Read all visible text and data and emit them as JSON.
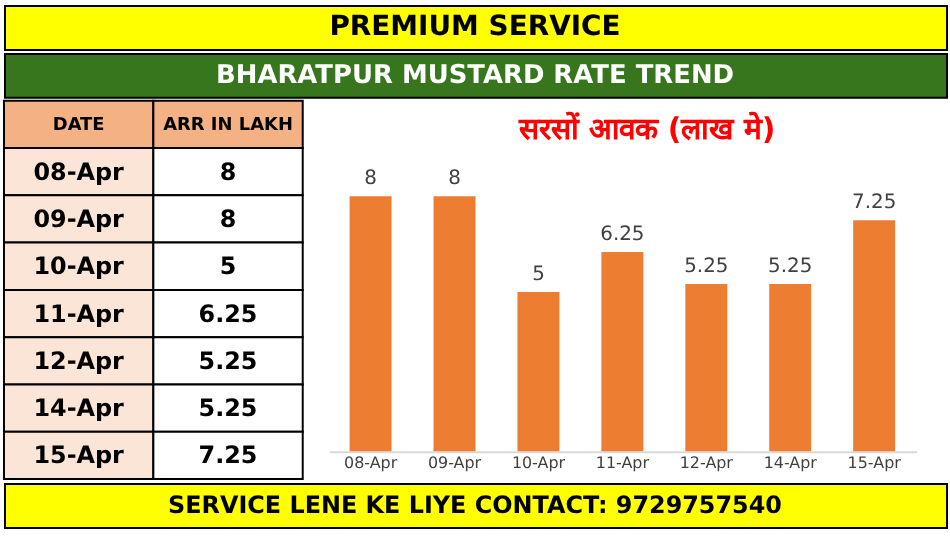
{
  "chart_data": [
    {
      "type": "other",
      "categories": [
        "08-Apr",
        "09-Apr",
        "10-Apr",
        "11-Apr",
        "12-Apr",
        "14-Apr",
        "15-Apr"
      ],
      "values": [
        8,
        8,
        5,
        6.25,
        5.25,
        5.25,
        7.25
      ],
      "data_labels": true,
      "annotations": [
        "DATE",
        "ARR IN LAKH"
      ]
    },
    {
      "type": "bar",
      "title": "सरसों आवक (लाख मे)",
      "categories": [
        "08-Apr",
        "09-Apr",
        "10-Apr",
        "11-Apr",
        "12-Apr",
        "14-Apr",
        "15-Apr"
      ],
      "values": [
        8,
        8,
        5,
        6.25,
        5.25,
        5.25,
        7.25
      ],
      "color": "#ed7d31",
      "data_labels": true,
      "grid": false,
      "annotations": [
        "PREMIUM SERVICE",
        "BHARATPUR MUSTARD RATE TREND",
        "SERVICE LENE KE LIYE CONTACT: 9729757540"
      ]
    }
  ]
}
